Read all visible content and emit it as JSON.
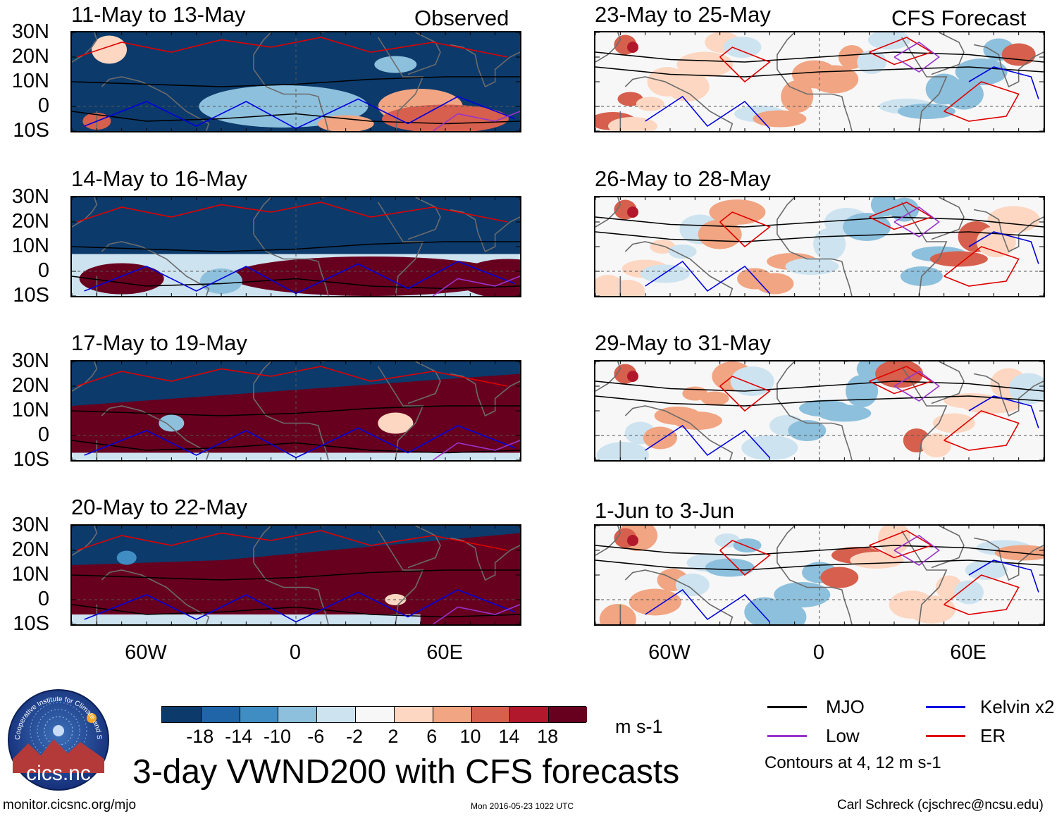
{
  "panels": [
    {
      "id": "p1",
      "title": "11-May to 13-May",
      "col": 0,
      "row": 0,
      "tag": "Observed",
      "mode": "obs1"
    },
    {
      "id": "p2",
      "title": "14-May to 16-May",
      "col": 0,
      "row": 1,
      "mode": "obs2"
    },
    {
      "id": "p3",
      "title": "17-May to 19-May",
      "col": 0,
      "row": 2,
      "mode": "obs3"
    },
    {
      "id": "p4",
      "title": "20-May to 22-May",
      "col": 0,
      "row": 3,
      "mode": "obs4"
    },
    {
      "id": "p5",
      "title": "23-May to 25-May",
      "col": 1,
      "row": 0,
      "tag": "CFS Forecast",
      "mode": "fc"
    },
    {
      "id": "p6",
      "title": "26-May to 28-May",
      "col": 1,
      "row": 1,
      "mode": "fc"
    },
    {
      "id": "p7",
      "title": "29-May to 31-May",
      "col": 1,
      "row": 2,
      "mode": "fc"
    },
    {
      "id": "p8",
      "title": "1-Jun to 3-Jun",
      "col": 1,
      "row": 3,
      "mode": "fc"
    }
  ],
  "y_labels": [
    "30N",
    "20N",
    "10N",
    "0",
    "10S"
  ],
  "x_labels": [
    "60W",
    "0",
    "60E"
  ],
  "colorbar": {
    "colors": [
      "#0c3a6b",
      "#1f65a8",
      "#3f8dc2",
      "#8dc0dc",
      "#cde3f0",
      "#f7f7f7",
      "#fdd7c2",
      "#f1a582",
      "#d6604d",
      "#b2182b",
      "#67001f"
    ],
    "ticks": [
      "-18",
      "-14",
      "-10",
      "-6",
      "-2",
      "2",
      "6",
      "10",
      "14",
      "18"
    ],
    "units": "m s-1"
  },
  "main_title": "3-day VWND200 with CFS forecasts",
  "logo_text": "cics.nc",
  "logo_arc_text": "Cooperative Institute for Climate and Satellites",
  "legend": {
    "items": [
      {
        "label": "MJO",
        "color": "#000000"
      },
      {
        "label": "Kelvin x2",
        "color": "#0000e0"
      },
      {
        "label": "Low",
        "color": "#9933cc"
      },
      {
        "label": "ER",
        "color": "#e00000"
      }
    ],
    "note": "Contours at 4, 12 m s-1"
  },
  "footer": {
    "url": "monitor.cicsnc.org/mjo",
    "timestamp": "Mon 2016-05-23 1022 UTC",
    "author": "Carl Schreck (cjschrec@ncsu.edu)"
  }
}
